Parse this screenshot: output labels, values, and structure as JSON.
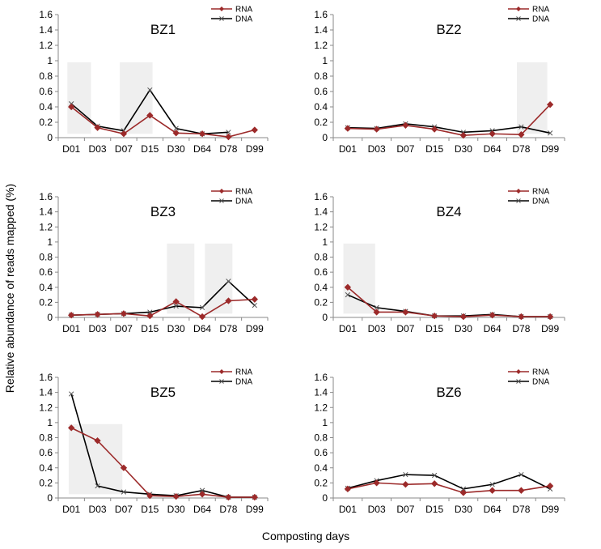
{
  "figure": {
    "ylabel": "Relative abundance of reads mapped (%)",
    "xlabel": "Composting days"
  },
  "chart_data": [
    {
      "type": "line",
      "title": "BZ1",
      "categories": [
        "D01",
        "D03",
        "D07",
        "D15",
        "D30",
        "D64",
        "D78",
        "D99"
      ],
      "ylim": [
        0,
        1.6
      ],
      "yticks": [
        "0",
        "0.2",
        "0.4",
        "0.6",
        "0.8",
        "1",
        "1.2",
        "1.4",
        "1.6"
      ],
      "legend": "top-right",
      "highlight_ranges": [
        [
          -0.15,
          0.75
        ],
        [
          1.85,
          3.1
        ]
      ],
      "series": [
        {
          "name": "RNA",
          "color": "#9c2a2a",
          "marker": "diamond",
          "values": [
            0.4,
            0.13,
            0.05,
            0.29,
            0.06,
            0.05,
            0.01,
            0.1
          ]
        },
        {
          "name": "DNA",
          "color": "#000000",
          "marker": "x",
          "values": [
            0.44,
            0.15,
            0.09,
            0.62,
            0.12,
            0.05,
            0.07,
            null
          ]
        }
      ]
    },
    {
      "type": "line",
      "title": "BZ2",
      "categories": [
        "D01",
        "D03",
        "D07",
        "D15",
        "D30",
        "D64",
        "D78",
        "D99"
      ],
      "ylim": [
        0,
        1.6
      ],
      "yticks": [
        "0",
        "0.2",
        "0.4",
        "0.6",
        "0.8",
        "1",
        "1.2",
        "1.4",
        "1.6"
      ],
      "legend": "top-right",
      "highlight_ranges": [
        [
          5.85,
          6.9
        ]
      ],
      "series": [
        {
          "name": "RNA",
          "color": "#9c2a2a",
          "marker": "diamond",
          "values": [
            0.12,
            0.11,
            0.16,
            0.11,
            0.03,
            0.05,
            0.04,
            0.43
          ]
        },
        {
          "name": "DNA",
          "color": "#000000",
          "marker": "x",
          "values": [
            0.13,
            0.12,
            0.18,
            0.14,
            0.07,
            0.09,
            0.14,
            0.06
          ]
        }
      ]
    },
    {
      "type": "line",
      "title": "BZ3",
      "categories": [
        "D01",
        "D03",
        "D07",
        "D15",
        "D30",
        "D64",
        "D78",
        "D99"
      ],
      "ylim": [
        0,
        1.6
      ],
      "yticks": [
        "0",
        "0.2",
        "0.4",
        "0.6",
        "0.8",
        "1",
        "1.2",
        "1.4",
        "1.6"
      ],
      "legend": "top-right",
      "highlight_ranges": [
        [
          3.65,
          4.7
        ],
        [
          5.1,
          6.15
        ]
      ],
      "series": [
        {
          "name": "RNA",
          "color": "#9c2a2a",
          "marker": "diamond",
          "values": [
            0.03,
            0.04,
            0.05,
            0.02,
            0.21,
            0.01,
            0.22,
            0.24
          ]
        },
        {
          "name": "DNA",
          "color": "#000000",
          "marker": "x",
          "values": [
            0.03,
            0.04,
            0.05,
            0.07,
            0.15,
            0.13,
            0.48,
            0.16
          ]
        }
      ]
    },
    {
      "type": "line",
      "title": "BZ4",
      "categories": [
        "D01",
        "D03",
        "D07",
        "D15",
        "D30",
        "D64",
        "D78",
        "D99"
      ],
      "ylim": [
        0,
        1.6
      ],
      "yticks": [
        "0",
        "0.2",
        "0.4",
        "0.6",
        "0.8",
        "1",
        "1.2",
        "1.4",
        "1.6"
      ],
      "legend": "top-right",
      "highlight_ranges": [
        [
          -0.15,
          0.95
        ]
      ],
      "series": [
        {
          "name": "RNA",
          "color": "#9c2a2a",
          "marker": "diamond",
          "values": [
            0.4,
            0.07,
            0.07,
            0.02,
            0.01,
            0.03,
            0.01,
            0.01
          ]
        },
        {
          "name": "DNA",
          "color": "#000000",
          "marker": "x",
          "values": [
            0.3,
            0.13,
            0.08,
            0.02,
            0.02,
            0.04,
            0.01,
            0.01
          ]
        }
      ]
    },
    {
      "type": "line",
      "title": "BZ5",
      "categories": [
        "D01",
        "D03",
        "D07",
        "D15",
        "D30",
        "D64",
        "D78",
        "D99"
      ],
      "ylim": [
        0,
        1.6
      ],
      "yticks": [
        "0",
        "0.2",
        "0.4",
        "0.6",
        "0.8",
        "1",
        "1.2",
        "1.4",
        "1.6"
      ],
      "legend": "top-right",
      "highlight_ranges": [
        [
          -0.1,
          1.95
        ]
      ],
      "series": [
        {
          "name": "RNA",
          "color": "#9c2a2a",
          "marker": "diamond",
          "values": [
            0.93,
            0.76,
            0.4,
            0.03,
            0.02,
            0.05,
            0.01,
            0.01
          ]
        },
        {
          "name": "DNA",
          "color": "#000000",
          "marker": "x",
          "values": [
            1.38,
            0.16,
            0.08,
            0.05,
            0.03,
            0.1,
            0.01,
            0.01
          ]
        }
      ]
    },
    {
      "type": "line",
      "title": "BZ6",
      "categories": [
        "D01",
        "D03",
        "D07",
        "D15",
        "D30",
        "D64",
        "D78",
        "D99"
      ],
      "ylim": [
        0,
        1.6
      ],
      "yticks": [
        "0",
        "0.2",
        "0.4",
        "0.6",
        "0.8",
        "1",
        "1.2",
        "1.4",
        "1.6"
      ],
      "legend": "top-right",
      "highlight_ranges": [],
      "series": [
        {
          "name": "RNA",
          "color": "#9c2a2a",
          "marker": "diamond",
          "values": [
            0.12,
            0.2,
            0.18,
            0.19,
            0.07,
            0.1,
            0.1,
            0.16
          ]
        },
        {
          "name": "DNA",
          "color": "#000000",
          "marker": "x",
          "values": [
            0.13,
            0.23,
            0.31,
            0.3,
            0.12,
            0.18,
            0.31,
            0.12
          ]
        }
      ]
    }
  ]
}
